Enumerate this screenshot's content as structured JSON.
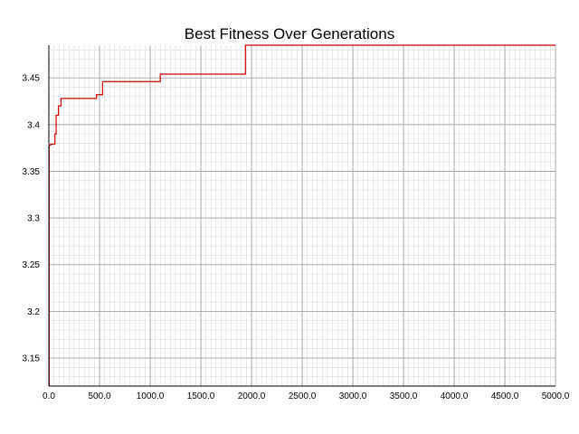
{
  "chart_data": {
    "type": "line",
    "title": "Best Fitness Over Generations",
    "xlabel": "",
    "ylabel": "",
    "xlim": [
      0,
      5000
    ],
    "ylim": [
      3.12,
      3.485
    ],
    "x_ticks": [
      0,
      500,
      1000,
      1500,
      2000,
      2500,
      3000,
      3500,
      4000,
      4500,
      5000
    ],
    "x_tick_labels": [
      "0.0",
      "500.0",
      "1000.0",
      "1500.0",
      "2000.0",
      "2500.0",
      "3000.0",
      "3500.0",
      "4000.0",
      "4500.0",
      "5000.0"
    ],
    "y_ticks": [
      3.15,
      3.2,
      3.25,
      3.3,
      3.35,
      3.4,
      3.45
    ],
    "y_tick_labels": [
      "3.15",
      "3.2",
      "3.25",
      "3.3",
      "3.35",
      "3.4",
      "3.45"
    ],
    "grid": true,
    "legend": "none",
    "line_style": "step",
    "series": [
      {
        "color": "#cc0000",
        "x": [
          0,
          3,
          18,
          60,
          72,
          95,
          120,
          470,
          530,
          1100,
          1940,
          5000
        ],
        "y": [
          3.12,
          3.378,
          3.379,
          3.39,
          3.41,
          3.42,
          3.428,
          3.432,
          3.446,
          3.454,
          3.485,
          3.485
        ]
      }
    ],
    "colors": {
      "major_grid": "#9a9a9a",
      "minor_grid": "#dcdcdc",
      "axis": "#000000",
      "line": "#cc0000"
    }
  }
}
